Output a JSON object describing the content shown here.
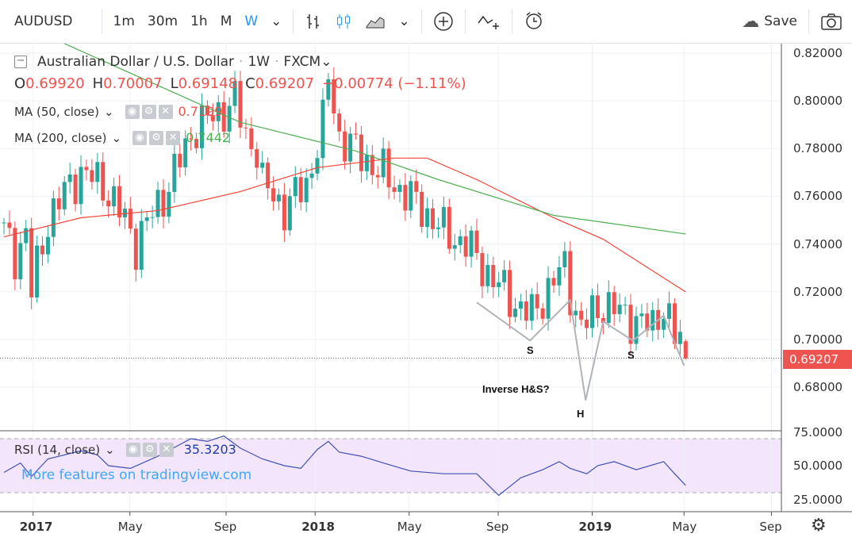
{
  "toolbar": {
    "symbol": "AUDUSD",
    "intervals": [
      "1m",
      "30m",
      "1h",
      "M",
      "W"
    ],
    "active_interval": "W",
    "save_label": "Save",
    "icons": [
      "chevron-down-icon",
      "bar-style-icon",
      "candles-icon",
      "area-chart-icon",
      "chevron-down-icon",
      "add-compare-icon",
      "indicators-icon",
      "alert-icon",
      "cloud-icon",
      "camera-icon"
    ]
  },
  "legend": {
    "title": "Australian Dollar / U.S. Dollar",
    "dot": "·",
    "interval": "1W",
    "exchange": "FXCM",
    "ohlc": {
      "o_label": "O",
      "o": "0.69920",
      "h_label": "H",
      "h": "0.70007",
      "l_label": "L",
      "l": "0.69148",
      "c_label": "C",
      "c": "0.69207",
      "change": "−0.00774 (−1.11%)"
    },
    "ma50": {
      "label": "MA (50, close)",
      "value": "0.7199"
    },
    "ma200": {
      "label": "MA (200, close)",
      "value": "0.7442"
    },
    "rsi": {
      "label": "RSI (14, close)",
      "value": "35.3203"
    }
  },
  "watermark": "More features on tradingview.com",
  "colors": {
    "up": "#26a69a",
    "down": "#ef5350",
    "ma50": "#f44336",
    "ma200": "#4caf50",
    "rsi": "#3f51b5",
    "rsi_band": "#f3e5fc",
    "accent": "#2196f3"
  },
  "chart_data": [
    {
      "type": "candlestick",
      "title": "Australian Dollar / U.S. Dollar · 1W · FXCM",
      "x_unit": "weeks from mid-Nov 2016",
      "ylim": [
        0.668,
        0.826
      ],
      "y_ticks": [
        "0.82000",
        "0.80000",
        "0.78000",
        "0.76000",
        "0.74000",
        "0.72000",
        "0.70000",
        "0.68000"
      ],
      "x_ticks": [
        {
          "label": "2017",
          "week": 5.3
        },
        {
          "label": "May",
          "week": 22.9
        },
        {
          "label": "Sep",
          "week": 40.4
        },
        {
          "label": "2018",
          "week": 56.6
        },
        {
          "label": "May",
          "week": 73.7
        },
        {
          "label": "Sep",
          "week": 89.9
        },
        {
          "label": "2019",
          "week": 107
        },
        {
          "label": "May",
          "week": 123.7
        },
        {
          "label": "Sep",
          "week": 139.6
        }
      ],
      "last_price": "0.69207",
      "weekly_close_keypoints": [
        [
          0,
          0.745
        ],
        [
          2,
          0.735
        ],
        [
          4,
          0.745
        ],
        [
          5,
          0.72
        ],
        [
          8,
          0.75
        ],
        [
          12,
          0.765
        ],
        [
          14,
          0.77
        ],
        [
          18,
          0.765
        ],
        [
          22,
          0.75
        ],
        [
          24,
          0.74
        ],
        [
          25,
          0.745
        ],
        [
          29,
          0.76
        ],
        [
          33,
          0.78
        ],
        [
          35,
          0.79
        ],
        [
          38,
          0.793
        ],
        [
          42,
          0.8
        ],
        [
          44,
          0.785
        ],
        [
          46,
          0.78
        ],
        [
          47,
          0.765
        ],
        [
          51,
          0.755
        ],
        [
          55,
          0.765
        ],
        [
          58,
          0.79
        ],
        [
          59,
          0.81
        ],
        [
          61,
          0.785
        ],
        [
          66,
          0.775
        ],
        [
          71,
          0.765
        ],
        [
          76,
          0.755
        ],
        [
          80,
          0.745
        ],
        [
          84,
          0.74
        ],
        [
          89,
          0.725
        ],
        [
          93,
          0.715
        ],
        [
          96,
          0.71
        ],
        [
          100,
          0.725
        ],
        [
          102,
          0.73
        ],
        [
          103,
          0.72
        ],
        [
          105,
          0.705
        ],
        [
          109,
          0.715
        ],
        [
          113,
          0.71
        ],
        [
          118,
          0.705
        ],
        [
          120,
          0.715
        ],
        [
          122,
          0.7
        ]
      ],
      "last_candle": {
        "open": 0.6992,
        "high": 0.70007,
        "low": 0.69148,
        "close": 0.69207
      },
      "series": [
        {
          "name": "MA (50, close)",
          "points": [
            [
              0,
              0.743
            ],
            [
              14,
              0.751
            ],
            [
              28,
              0.754
            ],
            [
              43,
              0.762
            ],
            [
              57,
              0.772
            ],
            [
              71,
              0.776
            ],
            [
              77,
              0.776
            ],
            [
              86,
              0.767
            ],
            [
              100,
              0.751
            ],
            [
              109,
              0.742
            ],
            [
              124,
              0.7199
            ]
          ]
        },
        {
          "name": "MA (200, close)",
          "points": [
            [
              11,
              0.824
            ],
            [
              43,
              0.791
            ],
            [
              64,
              0.779
            ],
            [
              79,
              0.767
            ],
            [
              100,
              0.752
            ],
            [
              124,
              0.7442
            ]
          ]
        }
      ],
      "annotations": [
        {
          "text": "S",
          "week": 95
        },
        {
          "text": "H",
          "week": 105
        },
        {
          "text": "S",
          "week": 114
        },
        {
          "text": "Inverse H&S?",
          "week": 87
        }
      ],
      "pattern_line": [
        [
          86,
          0.7155
        ],
        [
          95.7,
          0.6995
        ],
        [
          103,
          0.7165
        ],
        [
          105.8,
          0.6745
        ],
        [
          109,
          0.7075
        ],
        [
          114.4,
          0.6995
        ],
        [
          120,
          0.71
        ],
        [
          123.7,
          0.689
        ]
      ]
    },
    {
      "type": "line",
      "title": "RSI (14, close)",
      "ylim": [
        20,
        77
      ],
      "y_ticks": [
        "75.0000",
        "50.0000",
        "25.0000"
      ],
      "bands": [
        30,
        70
      ],
      "points": [
        [
          0,
          45
        ],
        [
          3,
          52
        ],
        [
          5,
          42
        ],
        [
          8,
          55
        ],
        [
          14,
          61
        ],
        [
          17,
          58
        ],
        [
          19,
          50
        ],
        [
          23,
          48
        ],
        [
          28,
          57
        ],
        [
          34,
          70
        ],
        [
          37,
          68
        ],
        [
          40,
          72
        ],
        [
          43,
          63
        ],
        [
          47,
          55
        ],
        [
          51,
          50
        ],
        [
          54,
          48
        ],
        [
          57,
          62
        ],
        [
          59,
          68
        ],
        [
          61,
          60
        ],
        [
          65,
          57
        ],
        [
          69,
          52
        ],
        [
          74,
          46
        ],
        [
          80,
          44
        ],
        [
          86,
          44
        ],
        [
          90,
          28
        ],
        [
          94,
          41
        ],
        [
          98,
          47
        ],
        [
          101,
          53
        ],
        [
          103,
          48
        ],
        [
          106,
          44
        ],
        [
          108,
          50
        ],
        [
          111,
          53
        ],
        [
          115,
          47
        ],
        [
          120,
          53
        ],
        [
          122,
          44
        ],
        [
          124,
          35.32
        ]
      ]
    }
  ]
}
